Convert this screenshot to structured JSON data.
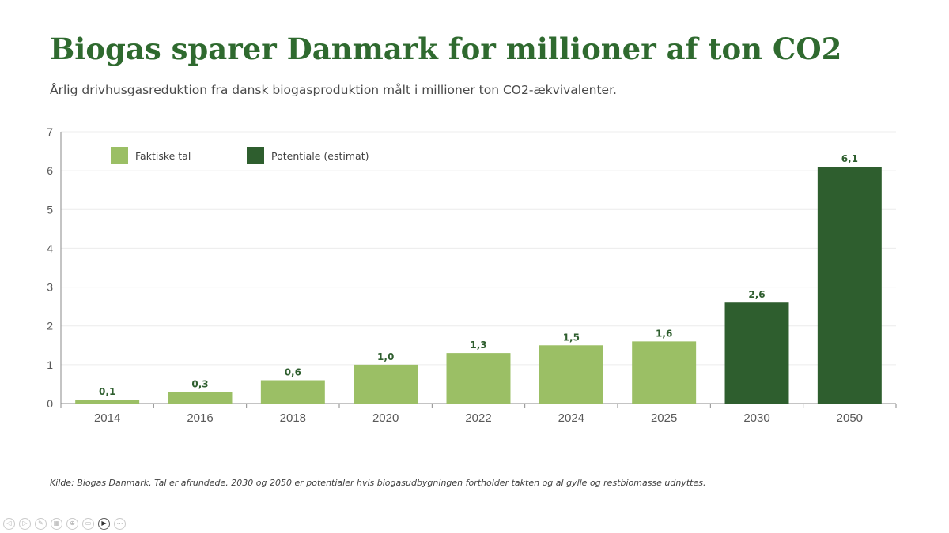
{
  "title": "Biogas sparer Danmark for millioner af ton CO2",
  "subtitle": "Årlig drivhusgasreduktion fra dansk biogasproduktion målt i millioner ton CO2-ækvivalenter.",
  "footnote": "Kilde: Biogas Danmark. Tal er afrundede. 2030 og 2050 er potentialer hvis biogasudbygningen fortholder takten og al gylle og restbiomasse udnyttes.",
  "colors": {
    "title": "#2f6a2f",
    "actual": "#9bbf65",
    "potential": "#2e5e2e",
    "label": "#2e5e2e",
    "grid": "#ececec",
    "axis": "#8a8a8a"
  },
  "chart_data": {
    "type": "bar",
    "categories": [
      "2014",
      "2016",
      "2018",
      "2020",
      "2022",
      "2024",
      "2025",
      "2030",
      "2050"
    ],
    "values": [
      0.1,
      0.3,
      0.6,
      1.0,
      1.3,
      1.5,
      1.6,
      2.6,
      6.1
    ],
    "value_labels": [
      "0,1",
      "0,3",
      "0,6",
      "1,0",
      "1,3",
      "1,5",
      "1,6",
      "2,6",
      "6,1"
    ],
    "series_index": [
      0,
      0,
      0,
      0,
      0,
      0,
      0,
      1,
      1
    ],
    "series": [
      {
        "name": "Faktiske tal",
        "color": "#9bbf65"
      },
      {
        "name": "Potentiale (estimat)",
        "color": "#2e5e2e"
      }
    ],
    "ylim": [
      0,
      7
    ],
    "yticks": [
      "0",
      "1",
      "2",
      "3",
      "4",
      "5",
      "6",
      "7"
    ],
    "grid": true,
    "legend_position": "top-left"
  },
  "controls": [
    {
      "name": "previous-slide-icon",
      "glyph": "◁"
    },
    {
      "name": "next-slide-icon",
      "glyph": "▷"
    },
    {
      "name": "pen-icon",
      "glyph": "✎"
    },
    {
      "name": "slides-grid-icon",
      "glyph": "▦"
    },
    {
      "name": "zoom-icon",
      "glyph": "⊕"
    },
    {
      "name": "subtitles-icon",
      "glyph": "▭"
    },
    {
      "name": "camera-icon",
      "glyph": "▶"
    },
    {
      "name": "more-options-icon",
      "glyph": "⋯"
    }
  ]
}
